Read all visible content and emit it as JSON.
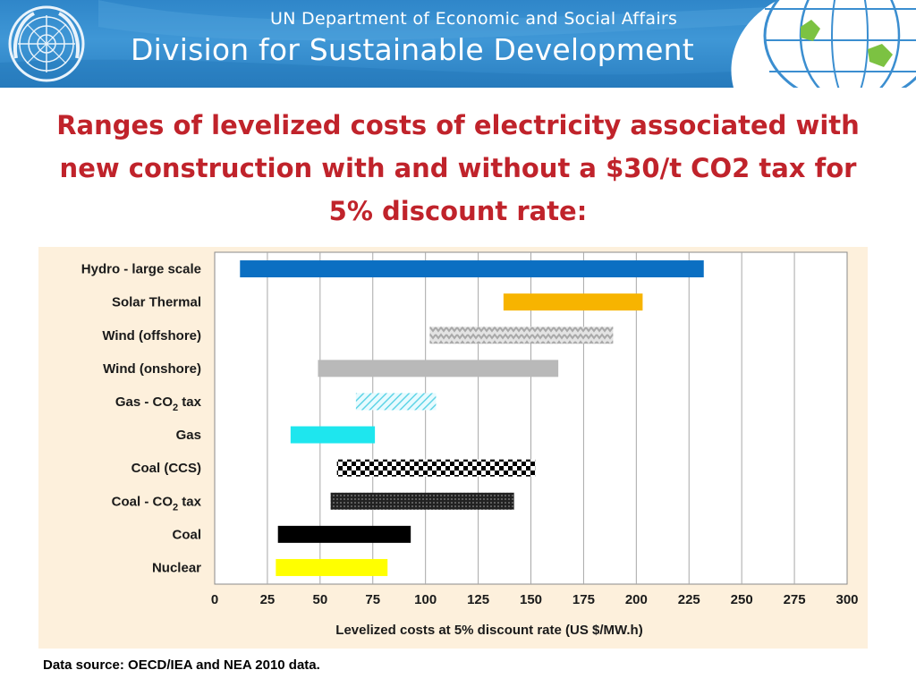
{
  "banner": {
    "line1": "UN Department of Economic and Social Affairs",
    "line2": "Division for Sustainable Development",
    "emblem_icon": "un-emblem-icon",
    "globe_icon": "globe-icon",
    "background_color": "#2f86c9"
  },
  "slide": {
    "title_line1": "Ranges of levelized costs of electricity associated with",
    "title_line2": "new construction with and without a $30/t CO2 tax for",
    "title_line3": "5% discount rate:",
    "title_color": "#c0232b"
  },
  "chart_data": {
    "type": "bar",
    "orientation": "horizontal-range",
    "title": "",
    "xlabel": "Levelized costs at 5% discount rate (US $/MW.h)",
    "ylabel": "",
    "xlim": [
      0,
      300
    ],
    "x_ticks": [
      "0",
      "25",
      "50",
      "75",
      "100",
      "125",
      "150",
      "175",
      "200",
      "225",
      "250",
      "275",
      "300"
    ],
    "grid": "vertical",
    "categories": [
      {
        "label": "Hydro - large scale",
        "sub": "",
        "tail": ""
      },
      {
        "label": "Solar Thermal",
        "sub": "",
        "tail": ""
      },
      {
        "label": "Wind (offshore)",
        "sub": "",
        "tail": ""
      },
      {
        "label": "Wind (onshore)",
        "sub": "",
        "tail": ""
      },
      {
        "label": "Gas - CO",
        "sub": "2",
        "tail": " tax"
      },
      {
        "label": "Gas",
        "sub": "",
        "tail": ""
      },
      {
        "label": "Coal (CCS)",
        "sub": "",
        "tail": ""
      },
      {
        "label": "Coal - CO",
        "sub": "2",
        "tail": " tax"
      },
      {
        "label": "Coal",
        "sub": "",
        "tail": ""
      },
      {
        "label": "Nuclear",
        "sub": "",
        "tail": ""
      }
    ],
    "ranges": [
      [
        12,
        232
      ],
      [
        137,
        203
      ],
      [
        102,
        189
      ],
      [
        49,
        163
      ],
      [
        67,
        105
      ],
      [
        36,
        76
      ],
      [
        58,
        152
      ],
      [
        55,
        142
      ],
      [
        30,
        93
      ],
      [
        29,
        82
      ]
    ],
    "fills": [
      "solid",
      "solid",
      "zigzag",
      "solid",
      "hatch",
      "solid",
      "checker",
      "dots",
      "solid",
      "solid"
    ],
    "colors": [
      "#0b6fc2",
      "#f7b400",
      "#c8c8c8",
      "#b9b9b9",
      "#5fd4e6",
      "#1ee6ee",
      "#000000",
      "#3a3a3a",
      "#000000",
      "#ffff00"
    ]
  },
  "footer": {
    "source": "Data source: OECD/IEA and NEA 2010 data."
  }
}
